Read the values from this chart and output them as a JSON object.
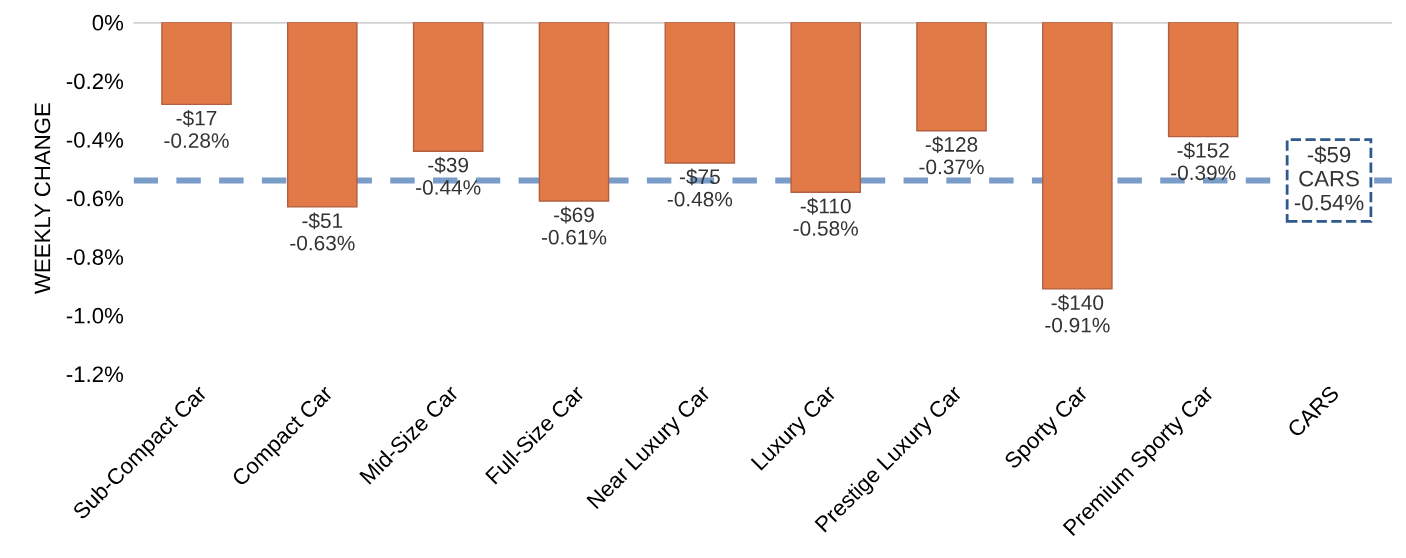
{
  "chart_data": {
    "type": "bar",
    "ylabel": "WEEKLY CHANGE",
    "categories": [
      "Sub-Compact Car",
      "Compact Car",
      "Mid-Size Car",
      "Full-Size Car",
      "Near Luxury Car",
      "Luxury Car",
      "Prestige Luxury Car",
      "Sporty Car",
      "Premium Sporty Car",
      "CARS"
    ],
    "values": [
      -0.28,
      -0.63,
      -0.44,
      -0.61,
      -0.48,
      -0.58,
      -0.37,
      -0.91,
      -0.39,
      null
    ],
    "value_labels": [
      "-$17\n-0.28%",
      "-$51\n-0.63%",
      "-$39\n-0.44%",
      "-$69\n-0.61%",
      "-$75\n-0.48%",
      "-$110\n-0.58%",
      "-$128\n-0.37%",
      "-$140\n-0.91%",
      "-$152\n-0.39%",
      null
    ],
    "color": "#e27a48",
    "ylim": [
      -1.2,
      0
    ],
    "yticks": [
      {
        "value": 0,
        "label": "0%"
      },
      {
        "value": -0.2,
        "label": "-0.2%"
      },
      {
        "value": -0.4,
        "label": "-0.4%"
      },
      {
        "value": -0.6,
        "label": "-0.6%"
      },
      {
        "value": -0.8,
        "label": "-0.8%"
      },
      {
        "value": -1.0,
        "label": "-1.0%"
      },
      {
        "value": -1.2,
        "label": "-1.2%"
      }
    ],
    "ref_lines": [
      {
        "axis": "y",
        "value": -0.54,
        "label": "-$59\nCARS\n-0.54%",
        "color": "#7a9cc8",
        "line_style": "dashed"
      }
    ],
    "grid": false,
    "legend": false
  }
}
